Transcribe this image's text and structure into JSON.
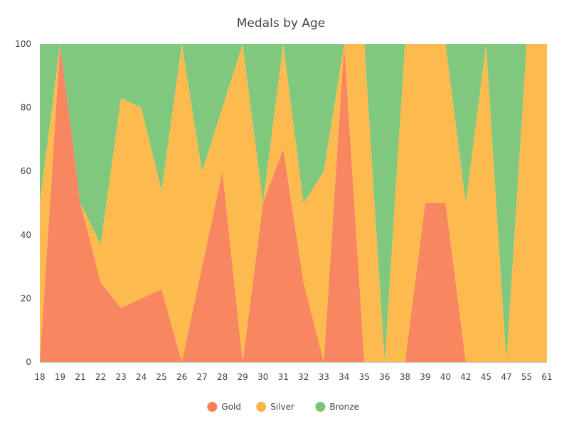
{
  "chart_data": {
    "type": "area",
    "stacking": "percent",
    "title": "Medals by Age",
    "xlabel": "",
    "ylabel": "",
    "categories": [
      "18",
      "19",
      "21",
      "22",
      "23",
      "24",
      "25",
      "26",
      "27",
      "28",
      "29",
      "30",
      "31",
      "32",
      "33",
      "34",
      "35",
      "36",
      "38",
      "39",
      "40",
      "42",
      "45",
      "47",
      "55",
      "61"
    ],
    "ylim": [
      0,
      100
    ],
    "yticks": [
      0,
      20,
      40,
      60,
      80,
      100
    ],
    "grid": false,
    "legend_position": "bottom-center",
    "series": [
      {
        "name": "Gold",
        "color": "#f77f59",
        "values": [
          0,
          100,
          50,
          25,
          17,
          20,
          23,
          0,
          30,
          60,
          0,
          50,
          67,
          25,
          0,
          100,
          0,
          0,
          0,
          50,
          50,
          0,
          0,
          0,
          0,
          0
        ]
      },
      {
        "name": "Silver",
        "color": "#fdb645",
        "values": [
          50,
          0,
          0,
          12,
          66,
          60,
          31,
          100,
          30,
          20,
          100,
          0,
          33,
          25,
          60,
          0,
          100,
          0,
          100,
          50,
          50,
          50,
          100,
          0,
          100,
          100
        ]
      },
      {
        "name": "Bronze",
        "color": "#79c576",
        "values": [
          50,
          0,
          50,
          63,
          17,
          20,
          46,
          0,
          40,
          20,
          0,
          50,
          0,
          50,
          40,
          0,
          0,
          100,
          0,
          0,
          0,
          50,
          0,
          100,
          0,
          0
        ]
      }
    ]
  }
}
